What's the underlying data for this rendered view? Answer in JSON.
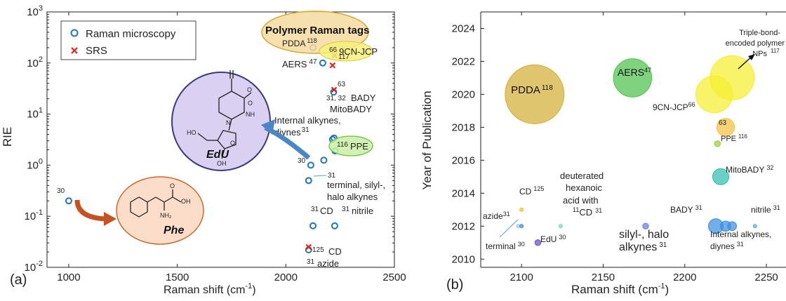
{
  "chart_data": [
    {
      "type": "scatter",
      "panel_label": "(a)",
      "xlabel": "Raman shift (cm",
      "xlabel_sup": "-1",
      "xlabel_tail": ")",
      "ylabel": "RIE",
      "xlim": [
        900,
        2500
      ],
      "ylim": [
        0.01,
        1000
      ],
      "yscale": "log",
      "x_ticks": [
        1000,
        1500,
        2000,
        2500
      ],
      "y_ticks": [
        {
          "value": 0.01,
          "base": "10",
          "exp": "-2"
        },
        {
          "value": 0.1,
          "base": "10",
          "exp": "-1"
        },
        {
          "value": 1,
          "base": "10",
          "exp": "0"
        },
        {
          "value": 10,
          "base": "10",
          "exp": "1"
        },
        {
          "value": 100,
          "base": "10",
          "exp": "2"
        },
        {
          "value": 1000,
          "base": "10",
          "exp": "3"
        }
      ],
      "legend": [
        {
          "name": "Raman microscopy",
          "marker": "circle",
          "color": "#1f77b4"
        },
        {
          "name": "SRS",
          "marker": "x",
          "color": "#e8211d"
        }
      ],
      "legend_position": "top-left",
      "series": [
        {
          "name": "Raman microscopy",
          "points": [
            {
              "x": 1000,
              "y": 0.2
            },
            {
              "x": 2125,
              "y": 200
            },
            {
              "x": 2170,
              "y": 100
            },
            {
              "x": 2220,
              "y": 27
            },
            {
              "x": 2222,
              "y": 3.4
            },
            {
              "x": 2215,
              "y": 3.2
            },
            {
              "x": 2227,
              "y": 1.9
            },
            {
              "x": 2175,
              "y": 1.25
            },
            {
              "x": 2115,
              "y": 1.0
            },
            {
              "x": 2105,
              "y": 0.5
            },
            {
              "x": 2125,
              "y": 0.065
            },
            {
              "x": 2225,
              "y": 0.065
            },
            {
              "x": 2105,
              "y": 0.022
            }
          ]
        },
        {
          "name": "SRS",
          "points": [
            {
              "x": 2225,
              "y": 140
            },
            {
              "x": 2215,
              "y": 90
            },
            {
              "x": 2222,
              "y": 30
            },
            {
              "x": 2105,
              "y": 0.025
            }
          ]
        }
      ],
      "annotations": {
        "polymer_tags": "Polymer Raman tags",
        "pdda": "PDDA",
        "pdda_ref": "118",
        "aers": "AERS",
        "aers_ref": "47",
        "srs_ref_117": "117",
        "ref_66": "66",
        "cn_jcp": "9CN-JCP",
        "ref_63": "63",
        "ref_31_32": "31, 32",
        "bady": "BADY",
        "mitobady": "MitoBADY",
        "internal_line1": "Internal alkynes,",
        "internal_line2": "diynes",
        "internal_ref": "31",
        "ref_116": "116",
        "ppe": "PPE",
        "ref_30": "30",
        "ref_31": "31",
        "terminal_line1": "terminal, silyl-,",
        "terminal_line2": "halo alkynes",
        "ref_30_phe": "30",
        "cd": "CD",
        "nitrile": "nitrile",
        "ref_125": "125",
        "azide": "azide",
        "edu": "EdU",
        "phe": "Phe",
        "mol_oh": "OH",
        "mol_o": "O",
        "mol_nh2": "NH₂",
        "mol_nh": "NH",
        "mol_n": "N",
        "mol_ho": "HO",
        "mol_oh2": "OH"
      }
    },
    {
      "type": "scatter",
      "panel_label": "(b)",
      "xlabel": "Raman shift (cm",
      "xlabel_sup": "-1",
      "xlabel_tail": ")",
      "ylabel": "Year of Publication",
      "xlim": [
        2075,
        2262
      ],
      "ylim": [
        2009.5,
        2025
      ],
      "x_ticks": [
        2100,
        2150,
        2200,
        2250
      ],
      "y_ticks": [
        2010,
        2012,
        2014,
        2016,
        2018,
        2020,
        2022,
        2024
      ],
      "bubbles": [
        {
          "x": 2108,
          "y": 2020,
          "size": 2.0,
          "color": "#d4af37",
          "label": "PDDA",
          "ref": "118"
        },
        {
          "x": 2168,
          "y": 2021,
          "size": 1.3,
          "color": "#4ec24e",
          "label": "AERS",
          "ref": "47"
        },
        {
          "x": 2229,
          "y": 2021,
          "size": 1.5,
          "color": "#f5ee2f",
          "label": "Triple-bond-encoded polymer NPs",
          "ref": "117"
        },
        {
          "x": 2218,
          "y": 2020,
          "size": 1.25,
          "color": "#f5ee2f",
          "label": "9CN-JCP",
          "ref": "66"
        },
        {
          "x": 2225,
          "y": 2018,
          "size": 0.6,
          "color": "#f4c241",
          "label": "63",
          "ref": ""
        },
        {
          "x": 2220,
          "y": 2017,
          "size": 0.2,
          "color": "#9bcf3a",
          "label": "PPE",
          "ref": "116"
        },
        {
          "x": 2222,
          "y": 2015,
          "size": 0.55,
          "color": "#2fc1ae",
          "label": "MitoBADY",
          "ref": "32"
        },
        {
          "x": 2219,
          "y": 2012,
          "size": 0.5,
          "color": "#3b8fe0",
          "label": "BADY",
          "ref": "31"
        },
        {
          "x": 2225,
          "y": 2012,
          "size": 0.35,
          "color": "#3b8fe0",
          "label": "",
          "ref": ""
        },
        {
          "x": 2229,
          "y": 2012,
          "size": 0.3,
          "color": "#3b8fe0",
          "label": "Internal alkynes, diynes",
          "ref": "31"
        },
        {
          "x": 2243,
          "y": 2012,
          "size": 0.12,
          "color": "#5aaed8",
          "label": "nitrile",
          "ref": "31"
        },
        {
          "x": 2176,
          "y": 2012,
          "size": 0.2,
          "color": "#6a7fe0",
          "label": "silyl-, halo alkynes",
          "ref": "31"
        },
        {
          "x": 2124,
          "y": 2012,
          "size": 0.1,
          "color": "#7fd5b0",
          "label": "deuterated hexanoic acid with CD",
          "ref": "31"
        },
        {
          "x": 2100,
          "y": 2013,
          "size": 0.12,
          "color": "#f0c030",
          "label": "CD",
          "ref": "125"
        },
        {
          "x": 2098,
          "y": 2012,
          "size": 0.12,
          "color": "#a8c8e8",
          "label": "azide",
          "ref": "31"
        },
        {
          "x": 2100,
          "y": 2012,
          "size": 0.12,
          "color": "#3b8fe0",
          "label": "terminal",
          "ref": "30"
        },
        {
          "x": 2110,
          "y": 2011,
          "size": 0.2,
          "color": "#6a4fc0",
          "label": "EdU",
          "ref": "30"
        }
      ],
      "annotations": {
        "polymer_line1": "Triple-bond-",
        "polymer_line2": "encoded polymer",
        "polymer_line3": "NPs",
        "polymer_ref": "117",
        "pdda": "PDDA",
        "pdda_ref": "118",
        "aers": "AERS",
        "aers_ref": "47",
        "cn_jcp": "9CN-JCP",
        "cn_ref": "66",
        "ref_63": "63",
        "ppe": "PPE",
        "ppe_ref": "116",
        "mitobady": "MitoBADY",
        "mitobady_ref": "32",
        "deut_line1": "deuterated",
        "deut_line2": "hexanoic",
        "deut_line3": "acid with",
        "deut_ref": "11",
        "deut_cd": "CD",
        "deut_ref2": "31",
        "cd": "CD",
        "cd_ref": "125",
        "azide": "azide",
        "azide_ref": "31",
        "terminal": "terminal",
        "terminal_ref": "30",
        "edu": "EdU",
        "edu_ref": "30",
        "silyl_line1": "silyl-, halo",
        "silyl_line2": "alkynes",
        "silyl_ref": "31",
        "bady": "BADY",
        "bady_ref": "31",
        "nitrile": "nitrile",
        "nitrile_ref": "31",
        "internal_line1": "Internal alkynes,",
        "internal_line2": "diynes",
        "internal_ref": "31"
      }
    }
  ]
}
